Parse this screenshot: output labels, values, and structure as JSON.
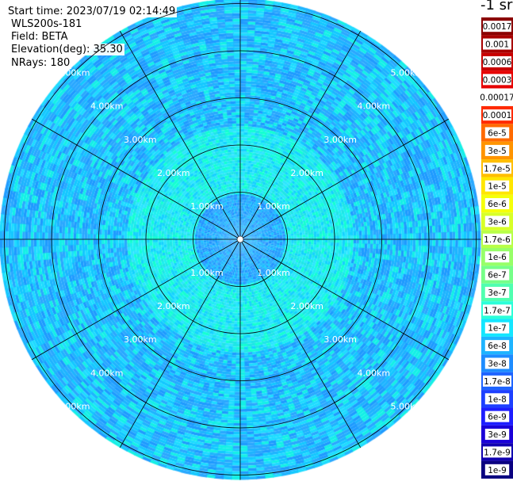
{
  "header": {
    "start_time": "Start time: 2023/07/19 02:14:49",
    "instrument": "WLS200s-181",
    "field": "Field: BETA",
    "elevation": "Elevation(deg): 35.30",
    "nrays": "NRays: 180"
  },
  "colorbar": {
    "unit": "-1 sr",
    "labels": [
      "0.0017",
      "0.001",
      "0.0006",
      "0.0003",
      "0.00017",
      "0.0001",
      "6e-5",
      "3e-5",
      "1.7e-5",
      "1e-5",
      "6e-6",
      "3e-6",
      "1.7e-6",
      "1e-6",
      "6e-7",
      "3e-7",
      "1.7e-7",
      "1e-7",
      "6e-8",
      "3e-8",
      "1.7e-8",
      "1e-8",
      "6e-9",
      "3e-9",
      "1.7e-9",
      "1e-9"
    ],
    "colors": [
      "#8b0000",
      "#a80000",
      "#c80000",
      "#e60000",
      "#ffffff",
      "#ff2a00",
      "#ff6a00",
      "#ff9400",
      "#ffbe00",
      "#ffe600",
      "#f5ff0a",
      "#d8ff28",
      "#b8ff48",
      "#97ff68",
      "#76ff88",
      "#50ffb0",
      "#2cffd8",
      "#14e6ff",
      "#1eb4ff",
      "#1e8cff",
      "#1e64ff",
      "#1e40ff",
      "#1e1eff",
      "#1a00d8",
      "#1000b0",
      "#0a0080"
    ]
  },
  "chart_data": {
    "type": "heatmap",
    "projection": "polar (PPI scan)",
    "field": "BETA",
    "nrays": 180,
    "range_rings_km": [
      1,
      2,
      3,
      4,
      5
    ],
    "ring_labels": [
      "1.00km",
      "2.00km",
      "3.00km",
      "4.00km",
      "5.00km"
    ],
    "radial_lines_deg": [
      0,
      30,
      60,
      90,
      120,
      150,
      180,
      210,
      240,
      270,
      300,
      330
    ],
    "max_range_km": 5.1,
    "value_zones": [
      {
        "range_km": [
          0.0,
          1.0
        ],
        "approx_value": "1e-7",
        "color": "#1e9bff"
      },
      {
        "range_km": [
          1.0,
          2.5
        ],
        "approx_value": "1.7e-7",
        "color": "#1ee6e6"
      },
      {
        "range_km": [
          2.5,
          5.1
        ],
        "approx_value": "1e-7 to 1.7e-7",
        "color": "#1eb4ff"
      }
    ],
    "color_scale": "logarithmic",
    "colorbar_range": [
      "1e-9",
      "0.0017"
    ]
  }
}
